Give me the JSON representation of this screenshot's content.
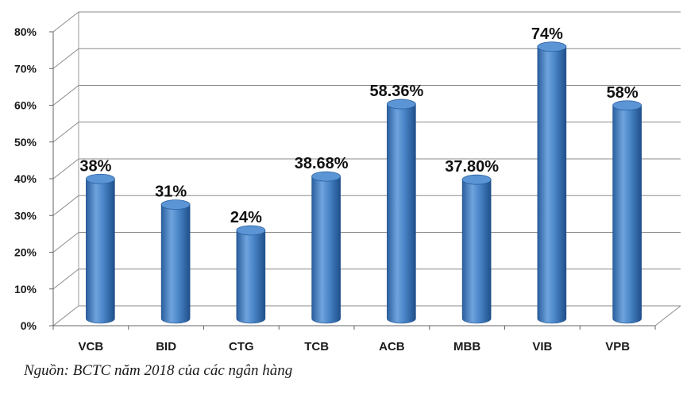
{
  "chart_data": {
    "type": "bar",
    "style": "3d-cylinder",
    "categories": [
      "VCB",
      "BID",
      "CTG",
      "TCB",
      "ACB",
      "MBB",
      "VIB",
      "VPB"
    ],
    "values": [
      38,
      31,
      24,
      38.68,
      58.36,
      37.8,
      74,
      58
    ],
    "data_labels": [
      "38%",
      "31%",
      "24%",
      "38.68%",
      "58.36%",
      "37.80%",
      "74%",
      "58%"
    ],
    "yticks": [
      "0%",
      "10%",
      "20%",
      "30%",
      "40%",
      "50%",
      "60%",
      "70%",
      "80%"
    ],
    "ylim": [
      0,
      80
    ],
    "grid": true,
    "legend": "none",
    "title": "",
    "xlabel": "",
    "ylabel": "",
    "bar_color": "#4a86c8"
  },
  "source_note": "Nguồn: BCTC năm 2018 của các ngân hàng"
}
